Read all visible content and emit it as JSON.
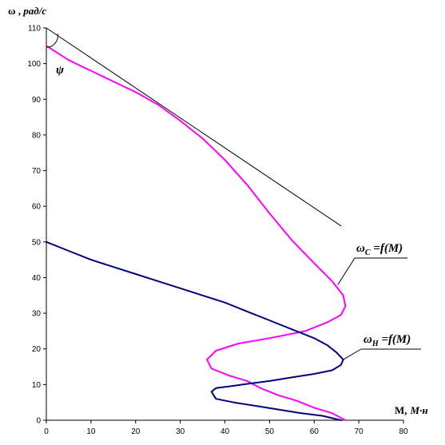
{
  "chart_data": {
    "type": "line",
    "y_axis_label": {
      "symbol": "ω",
      "sep": " ,  ",
      "unit": "рад/с"
    },
    "x_axis_label": {
      "symbol": "M,",
      "unit": "М·н"
    },
    "xlim": [
      0,
      80
    ],
    "ylim": [
      0,
      110
    ],
    "x_ticks": [
      "0",
      "10",
      "20",
      "30",
      "40",
      "50",
      "60",
      "70",
      "80"
    ],
    "y_ticks": [
      "0",
      "10",
      "20",
      "30",
      "40",
      "50",
      "60",
      "70",
      "80",
      "90",
      "100",
      "110"
    ],
    "grid": false,
    "angle_label": "ψ",
    "annotations": [
      {
        "base": "ω",
        "sub": "C",
        "rest": " =f(M)"
      },
      {
        "base": "ω",
        "sub": "H",
        "rest": " =f(M)"
      }
    ],
    "series": [
      {
        "color": "#ff00ff",
        "points": [
          [
            0,
            105
          ],
          [
            5,
            101
          ],
          [
            10,
            98
          ],
          [
            15,
            95
          ],
          [
            20,
            92
          ],
          [
            25,
            88.5
          ],
          [
            30,
            84
          ],
          [
            35,
            79
          ],
          [
            40,
            73
          ],
          [
            45,
            66
          ],
          [
            50,
            58
          ],
          [
            55,
            50.5
          ],
          [
            60,
            44
          ],
          [
            64,
            39
          ],
          [
            66.5,
            35
          ],
          [
            67,
            32
          ],
          [
            66,
            29.5
          ],
          [
            63,
            27.5
          ],
          [
            58,
            25
          ],
          [
            50,
            23
          ],
          [
            43,
            21.5
          ],
          [
            38,
            19.5
          ],
          [
            36,
            17
          ],
          [
            37,
            14.5
          ],
          [
            41,
            12.5
          ],
          [
            45,
            11
          ],
          [
            48,
            9
          ],
          [
            52,
            7
          ],
          [
            56,
            5.5
          ],
          [
            60,
            3.5
          ],
          [
            64,
            2
          ],
          [
            67,
            0
          ]
        ]
      },
      {
        "color": "#000080",
        "points": [
          [
            0,
            50
          ],
          [
            5,
            47.5
          ],
          [
            10,
            45
          ],
          [
            15,
            43
          ],
          [
            20,
            41
          ],
          [
            25,
            39
          ],
          [
            30,
            37
          ],
          [
            35,
            35
          ],
          [
            40,
            33
          ],
          [
            45,
            30.5
          ],
          [
            50,
            28
          ],
          [
            55,
            25.5
          ],
          [
            60,
            23
          ],
          [
            63,
            21
          ],
          [
            65,
            19
          ],
          [
            66.5,
            17
          ],
          [
            66,
            15.5
          ],
          [
            64,
            14
          ],
          [
            60,
            13
          ],
          [
            55,
            12
          ],
          [
            50,
            11
          ],
          [
            45,
            10.2
          ],
          [
            41,
            9.5
          ],
          [
            38,
            9
          ],
          [
            37,
            8
          ],
          [
            38,
            6
          ],
          [
            42,
            5
          ],
          [
            47,
            4
          ],
          [
            52,
            3
          ],
          [
            57,
            2
          ],
          [
            62,
            1.2
          ],
          [
            66,
            0
          ]
        ]
      },
      {
        "color": "#000000",
        "points": [
          [
            0,
            110
          ],
          [
            66,
            54.5
          ]
        ]
      }
    ]
  }
}
